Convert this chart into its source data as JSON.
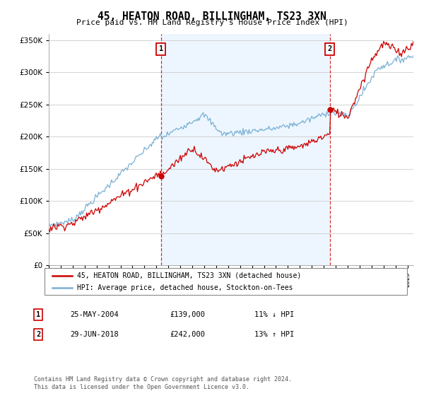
{
  "title": "45, HEATON ROAD, BILLINGHAM, TS23 3XN",
  "subtitle": "Price paid vs. HM Land Registry's House Price Index (HPI)",
  "legend_line1": "45, HEATON ROAD, BILLINGHAM, TS23 3XN (detached house)",
  "legend_line2": "HPI: Average price, detached house, Stockton-on-Tees",
  "annotation1_label": "1",
  "annotation1_date": "25-MAY-2004",
  "annotation1_price": "£139,000",
  "annotation1_hpi": "11% ↓ HPI",
  "annotation1_year": 2004.38,
  "annotation1_value": 139000,
  "annotation2_label": "2",
  "annotation2_date": "29-JUN-2018",
  "annotation2_price": "£242,000",
  "annotation2_hpi": "13% ↑ HPI",
  "annotation2_year": 2018.5,
  "annotation2_value": 242000,
  "footer": "Contains HM Land Registry data © Crown copyright and database right 2024.\nThis data is licensed under the Open Government Licence v3.0.",
  "ylim": [
    0,
    360000
  ],
  "xlim_start": 1995,
  "xlim_end": 2025.5,
  "red_color": "#cc0000",
  "blue_color": "#7ab0d4",
  "bg_shade_color": "#ddeeff",
  "background_color": "#ffffff",
  "grid_color": "#cccccc"
}
